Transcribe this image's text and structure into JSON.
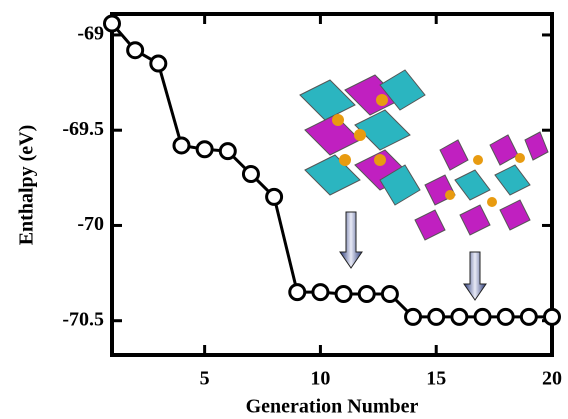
{
  "chart_data": {
    "type": "line",
    "xlabel": "Generation Number",
    "ylabel": "Enthalpy (eV)",
    "x": [
      1,
      2,
      3,
      4,
      5,
      6,
      7,
      8,
      9,
      10,
      11,
      12,
      13,
      14,
      15,
      16,
      17,
      18,
      19,
      20
    ],
    "series": [
      {
        "color": "#000000",
        "values": [
          -68.94,
          -69.08,
          -69.15,
          -69.58,
          -69.6,
          -69.61,
          -69.73,
          -69.85,
          -70.35,
          -70.35,
          -70.36,
          -70.36,
          -70.36,
          -70.48,
          -70.48,
          -70.48,
          -70.48,
          -70.48,
          -70.48,
          -70.48
        ]
      }
    ],
    "xlim": [
      1,
      20
    ],
    "ylim": [
      -70.68,
      -68.89
    ],
    "xticks": [
      5,
      10,
      15,
      20
    ],
    "yticks": [
      -69,
      -69.5,
      -70,
      -70.5
    ]
  }
}
